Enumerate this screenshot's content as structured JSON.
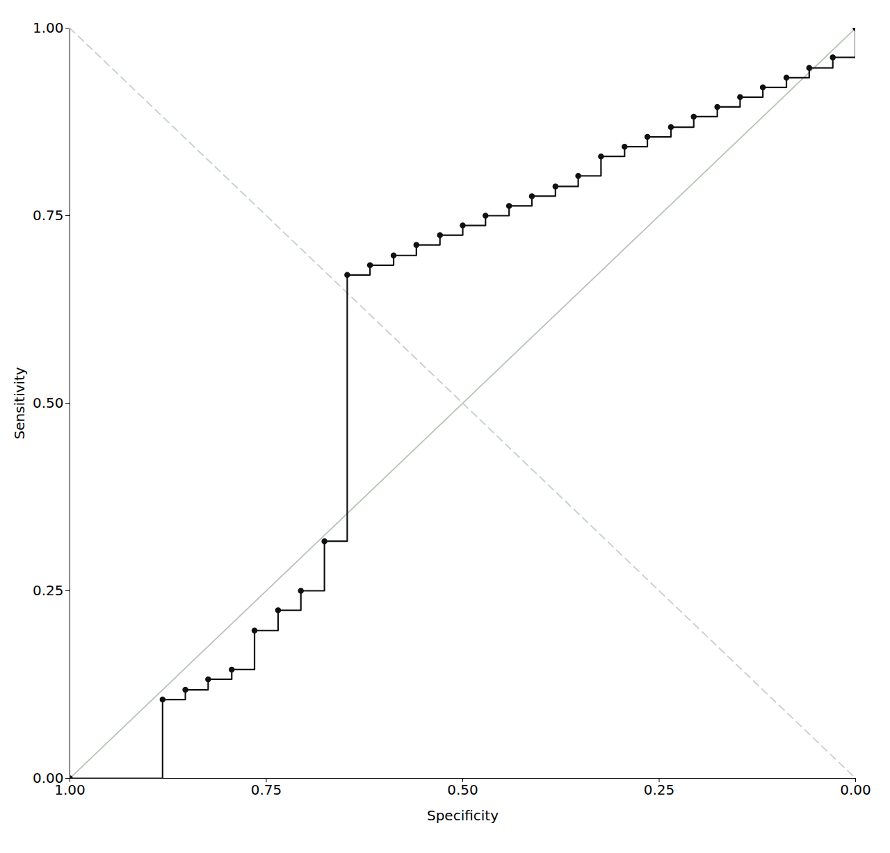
{
  "chart_data": {
    "type": "line",
    "xlabel": "Specificity",
    "ylabel": "Sensitivity",
    "xlim": [
      1.0,
      0.0
    ],
    "ylim": [
      0.0,
      1.0
    ],
    "xticks": [
      {
        "value": 1.0,
        "label": "1.00"
      },
      {
        "value": 0.75,
        "label": "0.75"
      },
      {
        "value": 0.5,
        "label": "0.50"
      },
      {
        "value": 0.25,
        "label": "0.25"
      },
      {
        "value": 0.0,
        "label": "0.00"
      }
    ],
    "yticks": [
      {
        "value": 0.0,
        "label": "0.00"
      },
      {
        "value": 0.25,
        "label": "0.25"
      },
      {
        "value": 0.5,
        "label": "0.50"
      },
      {
        "value": 0.75,
        "label": "0.75"
      },
      {
        "value": 1.0,
        "label": "1.00"
      }
    ],
    "grid": false,
    "reference_lines": [
      {
        "x": [
          1.0,
          0.0
        ],
        "y": [
          0.0,
          1.0
        ],
        "color": "#b8c4b8",
        "line_style": "solid"
      },
      {
        "x": [
          1.0,
          0.0
        ],
        "y": [
          1.0,
          0.0
        ],
        "color": "#c8d4c8",
        "line_style": "dashed"
      }
    ],
    "x": [
      1.0,
      0.882,
      0.882,
      0.853,
      0.853,
      0.824,
      0.824,
      0.794,
      0.794,
      0.765,
      0.765,
      0.735,
      0.735,
      0.706,
      0.706,
      0.676,
      0.676,
      0.647,
      0.647,
      0.618,
      0.618,
      0.588,
      0.588,
      0.559,
      0.559,
      0.529,
      0.529,
      0.5,
      0.5,
      0.471,
      0.471,
      0.441,
      0.441,
      0.412,
      0.412,
      0.382,
      0.382,
      0.353,
      0.353,
      0.324,
      0.324,
      0.294,
      0.294,
      0.265,
      0.265,
      0.235,
      0.235,
      0.206,
      0.206,
      0.176,
      0.176,
      0.147,
      0.147,
      0.118,
      0.118,
      0.088,
      0.088,
      0.059,
      0.059,
      0.029,
      0.029,
      0.0,
      0.0
    ],
    "values": [
      0.0,
      0.0,
      0.105,
      0.105,
      0.118,
      0.118,
      0.132,
      0.132,
      0.145,
      0.145,
      0.197,
      0.197,
      0.224,
      0.224,
      0.25,
      0.25,
      0.316,
      0.316,
      0.671,
      0.671,
      0.684,
      0.684,
      0.697,
      0.697,
      0.711,
      0.711,
      0.724,
      0.724,
      0.737,
      0.737,
      0.75,
      0.75,
      0.763,
      0.763,
      0.776,
      0.776,
      0.789,
      0.789,
      0.803,
      0.803,
      0.829,
      0.829,
      0.842,
      0.842,
      0.855,
      0.855,
      0.868,
      0.868,
      0.882,
      0.882,
      0.895,
      0.895,
      0.908,
      0.908,
      0.921,
      0.921,
      0.934,
      0.934,
      0.947,
      0.947,
      0.961,
      0.961,
      1.0
    ],
    "color": "#111111",
    "marker": "circle",
    "line_style": "solid"
  }
}
